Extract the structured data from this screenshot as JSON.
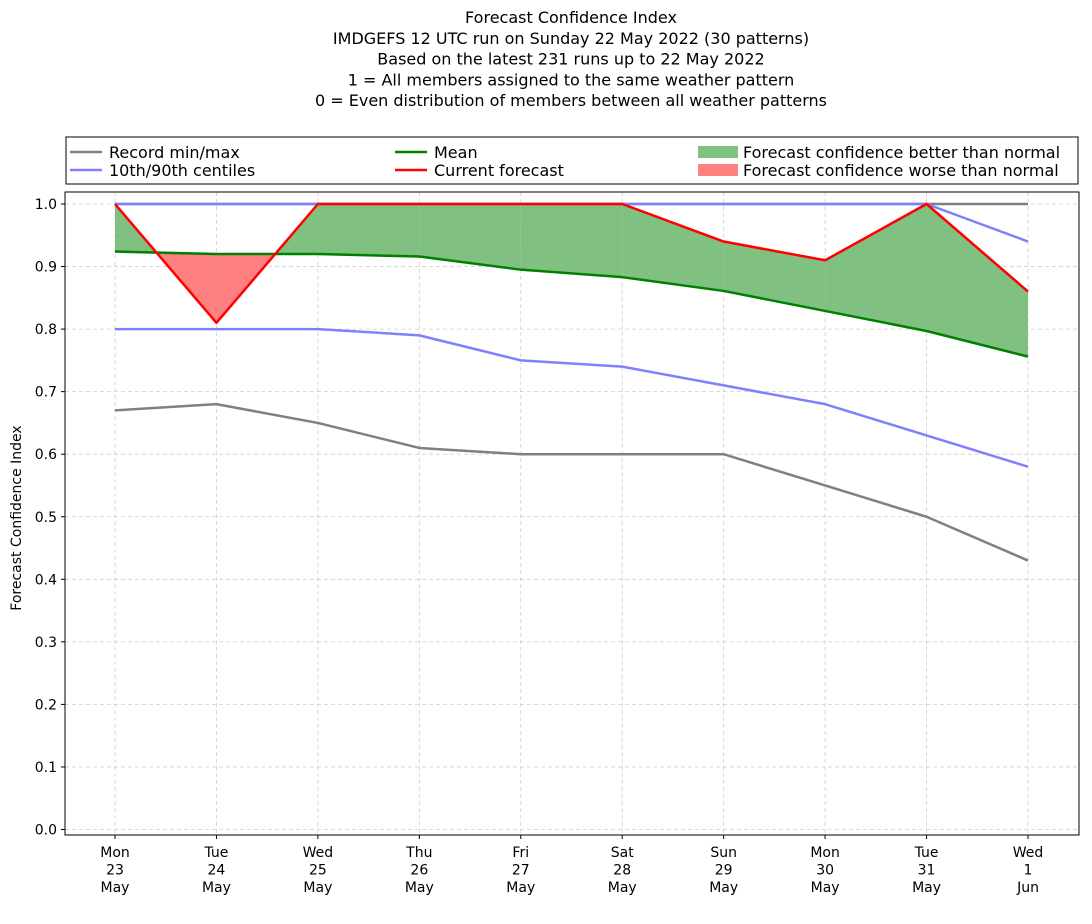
{
  "chart_data": {
    "type": "line",
    "title_lines": [
      "Forecast Confidence Index",
      "IMDGEFS 12 UTC run on Sunday 22 May 2022 (30 patterns)",
      "Based on the latest 231 runs up to 22 May 2022",
      "1 = All members assigned to the same weather pattern",
      "0 = Even distribution of members between all weather patterns"
    ],
    "ylabel": "Forecast Confidence Index",
    "ylim": [
      0,
      1
    ],
    "yticks": [
      "0.0",
      "0.1",
      "0.2",
      "0.3",
      "0.4",
      "0.5",
      "0.6",
      "0.7",
      "0.8",
      "0.9",
      "1.0"
    ],
    "grid": true,
    "legend_placement": "top, above plot",
    "categories": [
      [
        "Mon",
        "23",
        "May"
      ],
      [
        "Tue",
        "24",
        "May"
      ],
      [
        "Wed",
        "25",
        "May"
      ],
      [
        "Thu",
        "26",
        "May"
      ],
      [
        "Fri",
        "27",
        "May"
      ],
      [
        "Sat",
        "28",
        "May"
      ],
      [
        "Sun",
        "29",
        "May"
      ],
      [
        "Mon",
        "30",
        "May"
      ],
      [
        "Tue",
        "31",
        "May"
      ],
      [
        "Wed",
        "1",
        "Jun"
      ]
    ],
    "series": [
      {
        "key": "record_min",
        "name": "Record min/max",
        "color": "#808080",
        "values": [
          0.67,
          0.68,
          0.65,
          0.61,
          0.6,
          0.6,
          0.6,
          0.55,
          0.5,
          0.43
        ]
      },
      {
        "key": "record_max",
        "color": "#808080",
        "values": [
          1.0,
          1.0,
          1.0,
          1.0,
          1.0,
          1.0,
          1.0,
          1.0,
          1.0,
          1.0
        ]
      },
      {
        "key": "p10",
        "name": "10th/90th centiles",
        "color": "#8080ff",
        "values": [
          0.8,
          0.8,
          0.8,
          0.79,
          0.75,
          0.74,
          0.71,
          0.68,
          0.63,
          0.58
        ]
      },
      {
        "key": "p90",
        "color": "#8080ff",
        "values": [
          1.0,
          1.0,
          1.0,
          1.0,
          1.0,
          1.0,
          1.0,
          1.0,
          1.0,
          0.94
        ]
      },
      {
        "key": "mean",
        "name": "Mean",
        "color": "#008000",
        "values": [
          0.924,
          0.92,
          0.92,
          0.916,
          0.895,
          0.883,
          0.861,
          0.829,
          0.797,
          0.756
        ]
      },
      {
        "key": "current",
        "name": "Current forecast",
        "color": "#ff0000",
        "values": [
          1.0,
          0.81,
          1.0,
          1.0,
          1.0,
          1.0,
          0.94,
          0.91,
          1.0,
          0.86
        ]
      }
    ],
    "fills": [
      {
        "name": "Forecast confidence better than normal",
        "color": "#80c080"
      },
      {
        "name": "Forecast confidence worse than normal",
        "color": "#ff8080"
      }
    ]
  }
}
